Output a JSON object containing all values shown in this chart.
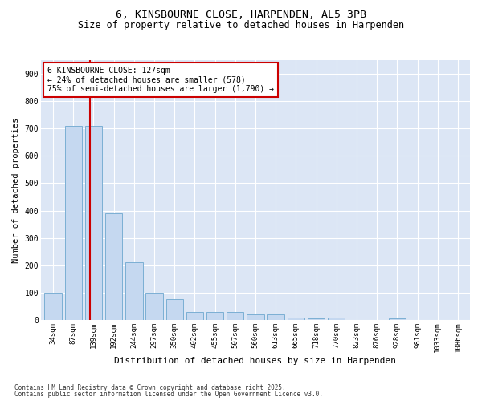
{
  "title": "6, KINSBOURNE CLOSE, HARPENDEN, AL5 3PB",
  "subtitle": "Size of property relative to detached houses in Harpenden",
  "xlabel": "Distribution of detached houses by size in Harpenden",
  "ylabel": "Number of detached properties",
  "categories": [
    "34sqm",
    "87sqm",
    "139sqm",
    "192sqm",
    "244sqm",
    "297sqm",
    "350sqm",
    "402sqm",
    "455sqm",
    "507sqm",
    "560sqm",
    "613sqm",
    "665sqm",
    "718sqm",
    "770sqm",
    "823sqm",
    "876sqm",
    "928sqm",
    "981sqm",
    "1033sqm",
    "1086sqm"
  ],
  "values": [
    100,
    710,
    710,
    390,
    210,
    100,
    75,
    30,
    30,
    30,
    20,
    20,
    8,
    5,
    10,
    0,
    0,
    5,
    0,
    0,
    0
  ],
  "bar_color": "#c5d8f0",
  "bar_edgecolor": "#7bafd4",
  "vline_color": "#cc0000",
  "vline_pos": 1.82,
  "annotation_title": "6 KINSBOURNE CLOSE: 127sqm",
  "annotation_line1": "← 24% of detached houses are smaller (578)",
  "annotation_line2": "75% of semi-detached houses are larger (1,790) →",
  "annotation_box_edgecolor": "#cc0000",
  "ylim": [
    0,
    950
  ],
  "yticks": [
    0,
    100,
    200,
    300,
    400,
    500,
    600,
    700,
    800,
    900
  ],
  "bg_color": "#dce6f5",
  "footer1": "Contains HM Land Registry data © Crown copyright and database right 2025.",
  "footer2": "Contains public sector information licensed under the Open Government Licence v3.0.",
  "title_fontsize": 9.5,
  "subtitle_fontsize": 8.5,
  "xlabel_fontsize": 8,
  "ylabel_fontsize": 7.5,
  "tick_fontsize": 6.5,
  "annot_fontsize": 7,
  "footer_fontsize": 5.5
}
